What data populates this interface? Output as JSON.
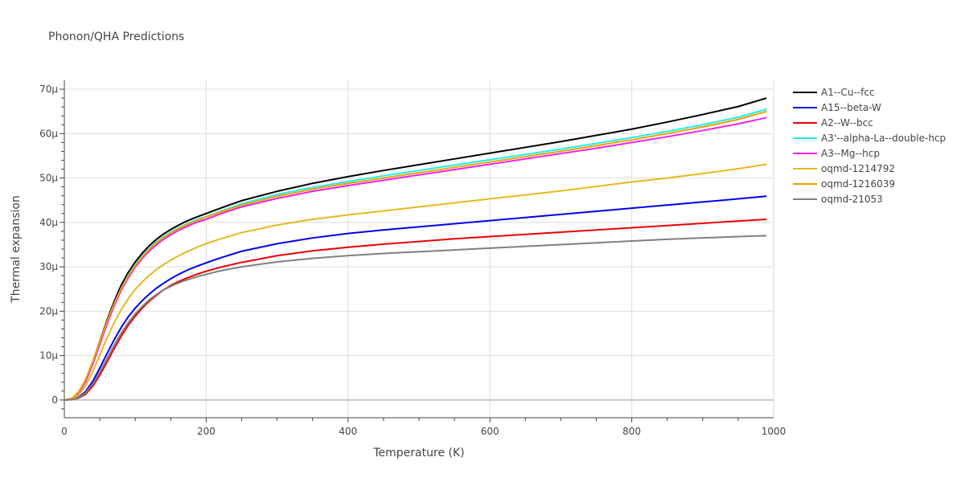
{
  "chart_data": {
    "type": "line",
    "title": "Phonon/QHA Predictions",
    "xlabel": "Temperature (K)",
    "ylabel": "Thermal expansion",
    "xlim": [
      0,
      1000
    ],
    "ylim": [
      -4,
      72
    ],
    "x_ticks": [
      0,
      200,
      400,
      600,
      800,
      1000
    ],
    "y_ticks": [
      0,
      10,
      20,
      30,
      40,
      50,
      60,
      70
    ],
    "y_tick_labels": [
      "0",
      "10μ",
      "20μ",
      "30μ",
      "40μ",
      "50μ",
      "60μ",
      "70μ"
    ],
    "y_unit": "μ (1e-6 per K)",
    "grid": true,
    "legend_position": "right",
    "x": [
      0,
      10,
      20,
      30,
      40,
      50,
      60,
      70,
      80,
      90,
      100,
      110,
      120,
      130,
      140,
      150,
      160,
      170,
      180,
      190,
      200,
      220,
      250,
      300,
      350,
      400,
      450,
      500,
      550,
      600,
      650,
      700,
      750,
      800,
      850,
      900,
      950,
      990
    ],
    "series": [
      {
        "name": "A1--Cu--fcc",
        "color": "#000000",
        "values": [
          0,
          0.3,
          1.6,
          4.4,
          8.5,
          13.2,
          17.9,
          22.1,
          25.8,
          28.7,
          31.1,
          33.1,
          34.8,
          36.2,
          37.4,
          38.4,
          39.3,
          40.1,
          40.8,
          41.4,
          42.0,
          43.2,
          44.9,
          47.0,
          48.8,
          50.3,
          51.7,
          53.0,
          54.3,
          55.6,
          56.9,
          58.2,
          59.6,
          61.0,
          62.6,
          64.3,
          66.1,
          68.0
        ]
      },
      {
        "name": "A15--beta-W",
        "color": "#0000ee",
        "values": [
          0,
          0.1,
          0.6,
          1.9,
          4.2,
          7.2,
          10.4,
          13.5,
          16.3,
          18.7,
          20.7,
          22.4,
          23.9,
          25.2,
          26.3,
          27.3,
          28.2,
          29.0,
          29.7,
          30.3,
          30.9,
          32.0,
          33.5,
          35.2,
          36.5,
          37.5,
          38.3,
          39.0,
          39.7,
          40.4,
          41.1,
          41.8,
          42.5,
          43.2,
          43.9,
          44.6,
          45.3,
          45.9
        ]
      },
      {
        "name": "A2--W--bcc",
        "color": "#ee0000",
        "values": [
          0,
          0.1,
          0.4,
          1.3,
          3.1,
          5.6,
          8.5,
          11.5,
          14.3,
          16.8,
          18.9,
          20.7,
          22.3,
          23.6,
          24.8,
          25.8,
          26.6,
          27.3,
          27.9,
          28.5,
          29.0,
          29.9,
          31.0,
          32.5,
          33.6,
          34.4,
          35.1,
          35.7,
          36.3,
          36.8,
          37.3,
          37.8,
          38.3,
          38.8,
          39.3,
          39.8,
          40.3,
          40.7
        ]
      },
      {
        "name": "A3'--alpha-La--double-hcp",
        "color": "#22eeee",
        "values": [
          0,
          0.3,
          1.5,
          4.2,
          8.2,
          12.8,
          17.4,
          21.6,
          25.1,
          28.1,
          30.5,
          32.5,
          34.2,
          35.6,
          36.8,
          37.8,
          38.7,
          39.5,
          40.2,
          40.8,
          41.3,
          42.5,
          44.2,
          46.3,
          47.9,
          49.2,
          50.5,
          51.7,
          52.9,
          54.1,
          55.3,
          56.5,
          57.8,
          59.1,
          60.5,
          62.0,
          63.7,
          65.5
        ]
      },
      {
        "name": "A3--Mg--hcp",
        "color": "#ee22ee",
        "values": [
          0,
          0.3,
          1.5,
          4.1,
          8.0,
          12.5,
          17.0,
          21.1,
          24.6,
          27.5,
          29.9,
          31.9,
          33.6,
          35.0,
          36.2,
          37.2,
          38.1,
          38.9,
          39.6,
          40.2,
          40.7,
          41.9,
          43.5,
          45.4,
          47.0,
          48.3,
          49.5,
          50.7,
          51.9,
          53.1,
          54.3,
          55.5,
          56.7,
          58.0,
          59.3,
          60.7,
          62.2,
          63.6
        ]
      },
      {
        "name": "oqmd-1214792",
        "color": "#e6b820",
        "values": [
          0,
          0.2,
          1.1,
          3.2,
          6.4,
          10.1,
          13.9,
          17.3,
          20.3,
          22.8,
          24.9,
          26.6,
          28.1,
          29.4,
          30.5,
          31.5,
          32.4,
          33.2,
          33.9,
          34.6,
          35.2,
          36.3,
          37.7,
          39.4,
          40.7,
          41.7,
          42.6,
          43.5,
          44.4,
          45.3,
          46.2,
          47.1,
          48.1,
          49.1,
          50.0,
          51.0,
          52.1,
          53.1
        ]
      },
      {
        "name": "oqmd-1216039",
        "color": "#f0a000",
        "values": [
          0,
          0.3,
          1.8,
          4.6,
          8.6,
          13.1,
          17.6,
          21.6,
          25.0,
          27.9,
          30.3,
          32.3,
          34.0,
          35.4,
          36.6,
          37.6,
          38.5,
          39.3,
          40.0,
          40.6,
          41.2,
          42.3,
          43.9,
          45.9,
          47.5,
          48.8,
          50.0,
          51.2,
          52.4,
          53.6,
          54.8,
          56.0,
          57.3,
          58.6,
          60.0,
          61.5,
          63.2,
          65.0
        ]
      },
      {
        "name": "oqmd-21053",
        "color": "#808080",
        "values": [
          0,
          0.1,
          0.5,
          1.6,
          3.6,
          6.3,
          9.3,
          12.3,
          15.0,
          17.4,
          19.4,
          21.1,
          22.6,
          23.8,
          24.8,
          25.6,
          26.3,
          26.9,
          27.4,
          27.9,
          28.3,
          29.1,
          30.0,
          31.1,
          31.9,
          32.5,
          33.0,
          33.4,
          33.8,
          34.2,
          34.6,
          35.0,
          35.4,
          35.8,
          36.2,
          36.5,
          36.8,
          37.0
        ]
      }
    ]
  }
}
